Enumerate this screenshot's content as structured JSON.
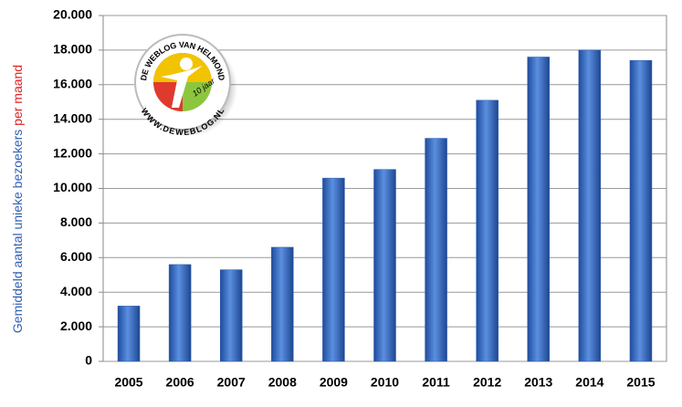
{
  "chart_data": {
    "type": "bar",
    "ylabel": {
      "text": "Gemiddeld aantal unieke bezoekers",
      "highlight": "per maand"
    },
    "categories": [
      "2005",
      "2006",
      "2007",
      "2008",
      "2009",
      "2010",
      "2011",
      "2012",
      "2013",
      "2014",
      "2015"
    ],
    "values": [
      3200,
      5600,
      5300,
      6600,
      10600,
      11100,
      12900,
      15100,
      17600,
      18000,
      17400
    ],
    "color": "#2f5fb3",
    "ylim": [
      0,
      20000
    ],
    "yticks": [
      0,
      {
        "value": 2000,
        "label": "2.000"
      },
      {
        "value": 4000,
        "label": "4.000"
      },
      {
        "value": 6000,
        "label": "6.000"
      },
      {
        "value": 8000,
        "label": "8.000"
      },
      {
        "value": 10000,
        "label": "10.000"
      },
      {
        "value": 12000,
        "label": "12.000"
      },
      {
        "value": 14000,
        "label": "14.000"
      },
      {
        "value": 16000,
        "label": "16.000"
      },
      {
        "value": 18000,
        "label": "18.000"
      },
      {
        "value": 20000,
        "label": "20.000"
      }
    ],
    "grid": true,
    "logo": {
      "top": "DE WEBLOG VAN HELMOND",
      "bottom": "WWW.DEWEBLOG.NL",
      "badge": "10 jaar"
    }
  }
}
